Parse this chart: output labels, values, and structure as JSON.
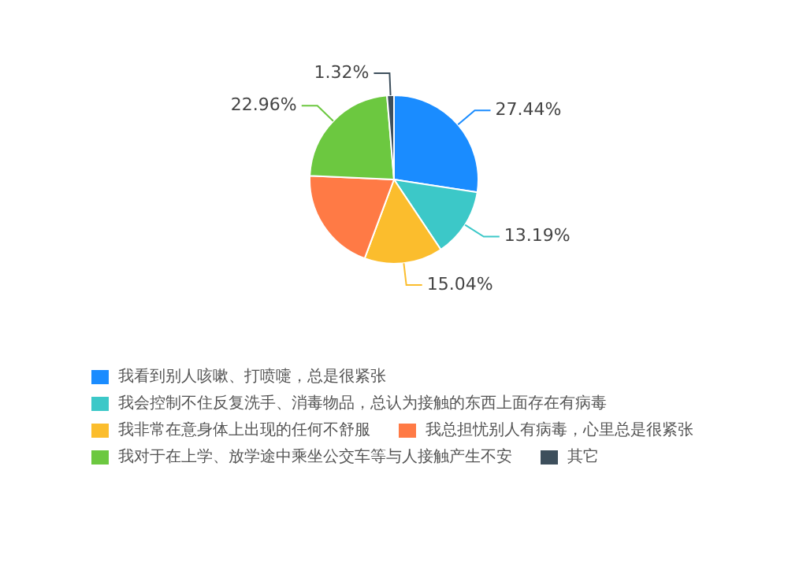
{
  "chart_data": {
    "type": "pie",
    "categories": [
      "我看到别人咳嗽、打喷嚏，总是很紧张",
      "我会控制不住反复洗手、消毒物品，总认为接触的东西上面存在有病毒",
      "我非常在意身体上出现的任何不舒服",
      "我总担忧别人有病毒，心里总是很紧张",
      "我对于在上学、放学途中乘坐公交车等与人接触产生不安",
      "其它"
    ],
    "values": [
      27.44,
      13.19,
      15.04,
      20.05,
      22.96,
      1.32
    ],
    "colors": [
      "#1a8cff",
      "#3cc8c8",
      "#fbbd2d",
      "#ff7a45",
      "#6cc840",
      "#3d4f5c"
    ],
    "value_labels": [
      "27.44%",
      "13.19%",
      "15.04%",
      null,
      "22.96%",
      "1.32%"
    ],
    "legend": "bottom"
  }
}
